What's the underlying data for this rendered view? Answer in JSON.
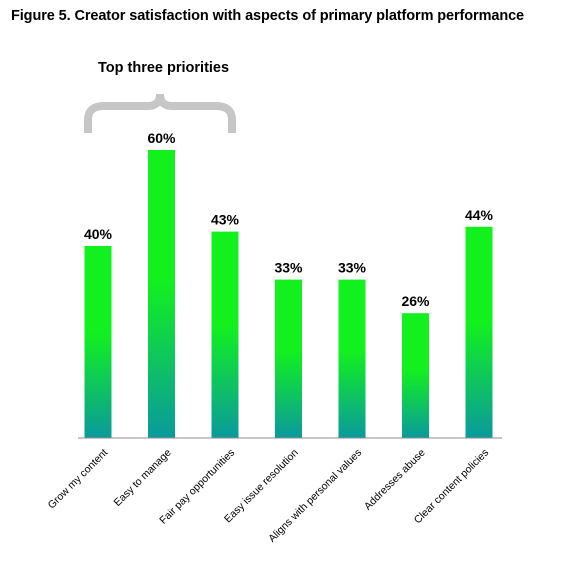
{
  "title": "Figure 5. Creator satisfaction with aspects of primary platform performance",
  "annotation": "Top three priorities",
  "colors": {
    "bar_top": "#12f11e",
    "bar_bottom": "#0a9a9c",
    "axis": "#8c8c8c",
    "brace": "#c6c6c6"
  },
  "chart_data": {
    "type": "bar",
    "title": "Figure 5. Creator satisfaction with aspects of primary platform performance",
    "xlabel": "",
    "ylabel": "",
    "categories": [
      "Grow my content",
      "Easy to manage",
      "Fair pay opportunities",
      "Easy issue resolution",
      "Aligns with personal values",
      "Addresses abuse",
      "Clear content policies"
    ],
    "values": [
      40,
      60,
      43,
      33,
      33,
      26,
      44
    ],
    "value_labels": [
      "40%",
      "60%",
      "43%",
      "33%",
      "33%",
      "26%",
      "44%"
    ],
    "unit": "%",
    "ylim": [
      0,
      60
    ],
    "grid": false,
    "legend": "none",
    "annotations": [
      {
        "text": "Top three priorities",
        "spans_categories": [
          0,
          2
        ]
      }
    ]
  }
}
